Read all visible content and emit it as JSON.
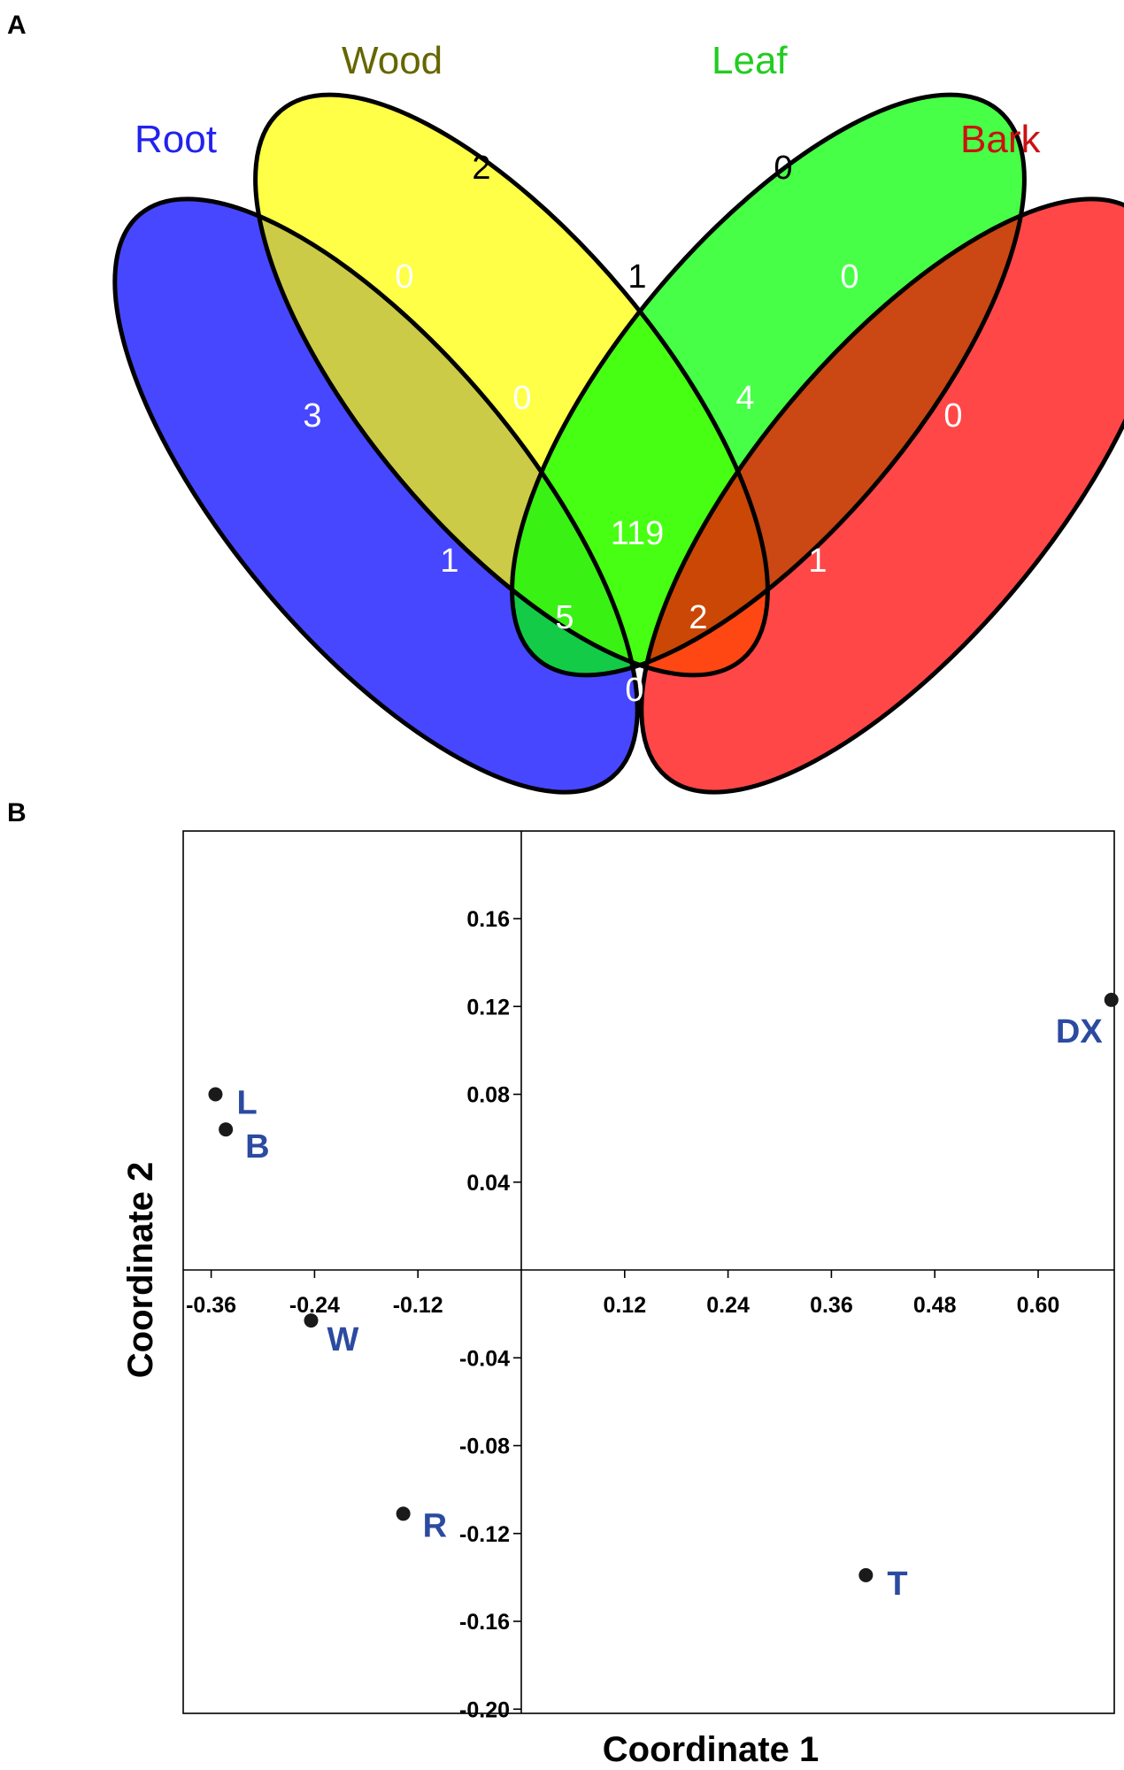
{
  "panel_a": {
    "letter": "A"
  },
  "panel_b": {
    "letter": "B"
  },
  "chart_data": [
    {
      "type": "venn",
      "sets": [
        {
          "name": "Root",
          "color": "#2222ee",
          "fill": "#0000ff"
        },
        {
          "name": "Wood",
          "color": "#666600",
          "fill": "#ffff00"
        },
        {
          "name": "Leaf",
          "color": "#22cc22",
          "fill": "#00ff00"
        },
        {
          "name": "Bark",
          "color": "#cc1111",
          "fill": "#ff0000"
        }
      ],
      "regions": [
        {
          "sets": [
            "Wood"
          ],
          "value": 2,
          "text_color": "#000000"
        },
        {
          "sets": [
            "Leaf"
          ],
          "value": 0,
          "text_color": "#000000"
        },
        {
          "sets": [
            "Root"
          ],
          "value": 3,
          "text_color": "#ffffff"
        },
        {
          "sets": [
            "Bark"
          ],
          "value": 0,
          "text_color": "#ffffff"
        },
        {
          "sets": [
            "Root",
            "Wood"
          ],
          "value": 0,
          "text_color": "#ffffff"
        },
        {
          "sets": [
            "Wood",
            "Leaf"
          ],
          "value": 1,
          "text_color": "#000000"
        },
        {
          "sets": [
            "Leaf",
            "Bark"
          ],
          "value": 0,
          "text_color": "#ffffff"
        },
        {
          "sets": [
            "Root",
            "Wood",
            "Leaf"
          ],
          "value": 0,
          "text_color": "#ffffff"
        },
        {
          "sets": [
            "Wood",
            "Leaf",
            "Bark"
          ],
          "value": 4,
          "text_color": "#ffffff"
        },
        {
          "sets": [
            "Root",
            "Leaf"
          ],
          "value": 1,
          "text_color": "#ffffff"
        },
        {
          "sets": [
            "Root",
            "Wood",
            "Leaf",
            "Bark"
          ],
          "value": 119,
          "text_color": "#ffffff"
        },
        {
          "sets": [
            "Wood",
            "Bark"
          ],
          "value": 1,
          "text_color": "#ffffff"
        },
        {
          "sets": [
            "Root",
            "Leaf",
            "Bark"
          ],
          "value": 5,
          "text_color": "#ffffff"
        },
        {
          "sets": [
            "Root",
            "Wood",
            "Bark"
          ],
          "value": 2,
          "text_color": "#ffffff"
        },
        {
          "sets": [
            "Root",
            "Bark"
          ],
          "value": 0,
          "text_color": "#ffffff"
        }
      ]
    },
    {
      "type": "scatter",
      "xlabel": "Coordinate 1",
      "ylabel": "Coordinate 2",
      "xlim": [
        -0.4,
        0.7
      ],
      "ylim": [
        -0.2,
        0.2
      ],
      "xticks": [
        -0.36,
        -0.24,
        -0.12,
        0.12,
        0.24,
        0.36,
        0.48,
        0.6
      ],
      "xtick_labels": [
        "-0.36",
        "-0.24",
        "-0.12",
        "0.12",
        "0.24",
        "0.36",
        "0.48",
        "0.60"
      ],
      "yticks": [
        0.16,
        0.12,
        0.08,
        0.04,
        -0.04,
        -0.08,
        -0.12,
        -0.16,
        -0.2
      ],
      "ytick_labels": [
        "0.16",
        "0.12",
        "0.08",
        "0.04",
        "-0.04",
        "-0.08",
        "-0.12",
        "-0.16",
        "-0.20"
      ],
      "label_color": "#2b4aa0",
      "point_color": "#1a1a1a",
      "points": [
        {
          "label": "L",
          "x": -0.355,
          "y": 0.08
        },
        {
          "label": "B",
          "x": -0.343,
          "y": 0.064
        },
        {
          "label": "W",
          "x": -0.244,
          "y": -0.023
        },
        {
          "label": "R",
          "x": -0.137,
          "y": -0.111
        },
        {
          "label": "T",
          "x": 0.4,
          "y": -0.139
        },
        {
          "label": "DX",
          "x": 0.685,
          "y": 0.123
        }
      ]
    }
  ]
}
